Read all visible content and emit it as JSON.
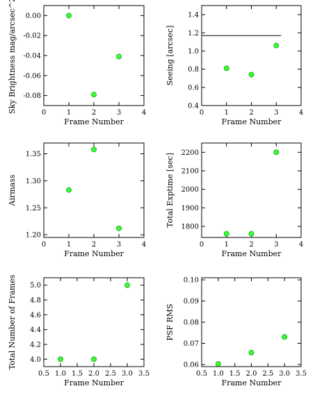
{
  "chart_data": [
    {
      "type": "scatter",
      "xlabel": "Frame Number",
      "ylabel": "Sky Brightness mag/arcsec^2",
      "xlim": [
        0,
        4
      ],
      "ylim": [
        -0.09,
        0.01
      ],
      "xticks": [
        0,
        1,
        2,
        3,
        4
      ],
      "xtick_labels": [
        "0",
        "1",
        "2",
        "3",
        "4"
      ],
      "yticks": [
        -0.08,
        -0.06,
        -0.04,
        -0.02,
        0.0
      ],
      "ytick_labels": [
        "-0.08",
        "-0.06",
        "-0.04",
        "-0.02",
        "0.00"
      ],
      "x": [
        1,
        2,
        3
      ],
      "y": [
        0.0,
        -0.079,
        -0.041
      ],
      "hlines": []
    },
    {
      "type": "scatter",
      "xlabel": "Frame Number",
      "ylabel": "Seeing [arcsec]",
      "xlim": [
        0,
        4
      ],
      "ylim": [
        0.4,
        1.5
      ],
      "xticks": [
        0,
        1,
        2,
        3,
        4
      ],
      "xtick_labels": [
        "0",
        "1",
        "2",
        "3",
        "4"
      ],
      "yticks": [
        0.4,
        0.6,
        0.8,
        1.0,
        1.2,
        1.4
      ],
      "ytick_labels": [
        "0.4",
        "0.6",
        "0.8",
        "1.0",
        "1.2",
        "1.4"
      ],
      "x": [
        1,
        2,
        3
      ],
      "y": [
        0.81,
        0.74,
        1.06
      ],
      "hlines": [
        {
          "y": 1.17,
          "x_from": 0,
          "x_to": 3.2
        }
      ]
    },
    {
      "type": "scatter",
      "xlabel": "Frame Number",
      "ylabel": "Airmass",
      "xlim": [
        0,
        4
      ],
      "ylim": [
        1.195,
        1.37
      ],
      "xticks": [
        0,
        1,
        2,
        3,
        4
      ],
      "xtick_labels": [
        "0",
        "1",
        "2",
        "3",
        "4"
      ],
      "yticks": [
        1.2,
        1.25,
        1.3,
        1.35
      ],
      "ytick_labels": [
        "1.20",
        "1.25",
        "1.30",
        "1.35"
      ],
      "x": [
        1,
        2,
        3
      ],
      "y": [
        1.283,
        1.358,
        1.212
      ],
      "hlines": []
    },
    {
      "type": "scatter",
      "xlabel": "Frame Number",
      "ylabel": "Total Exptime [sec]",
      "xlim": [
        0,
        4
      ],
      "ylim": [
        1740,
        2250
      ],
      "xticks": [
        0,
        1,
        2,
        3,
        4
      ],
      "xtick_labels": [
        "0",
        "1",
        "2",
        "3",
        "4"
      ],
      "yticks": [
        1800,
        1900,
        2000,
        2100,
        2200
      ],
      "ytick_labels": [
        "1800",
        "1900",
        "2000",
        "2100",
        "2200"
      ],
      "x": [
        1,
        2,
        3
      ],
      "y": [
        1760,
        1760,
        2200
      ],
      "hlines": []
    },
    {
      "type": "scatter",
      "xlabel": "Frame Number",
      "ylabel": "Total Number of Frames",
      "xlim": [
        0.5,
        3.5
      ],
      "ylim": [
        3.9,
        5.1
      ],
      "xticks": [
        0.5,
        1.0,
        1.5,
        2.0,
        2.5,
        3.0,
        3.5
      ],
      "xtick_labels": [
        "0.5",
        "1.0",
        "1.5",
        "2.0",
        "2.5",
        "3.0",
        "3.5"
      ],
      "yticks": [
        4.0,
        4.2,
        4.4,
        4.6,
        4.8,
        5.0
      ],
      "ytick_labels": [
        "4.0",
        "4.2",
        "4.4",
        "4.6",
        "4.8",
        "5.0"
      ],
      "x": [
        1,
        2,
        3
      ],
      "y": [
        4.0,
        4.0,
        5.0
      ],
      "hlines": []
    },
    {
      "type": "scatter",
      "xlabel": "Frame Number",
      "ylabel": "PSF RMS",
      "xlim": [
        0.5,
        3.5
      ],
      "ylim": [
        0.059,
        0.101
      ],
      "xticks": [
        0.5,
        1.0,
        1.5,
        2.0,
        2.5,
        3.0,
        3.5
      ],
      "xtick_labels": [
        "0.5",
        "1.0",
        "1.5",
        "2.0",
        "2.5",
        "3.0",
        "3.5"
      ],
      "yticks": [
        0.06,
        0.07,
        0.08,
        0.09,
        0.1
      ],
      "ytick_labels": [
        "0.06",
        "0.07",
        "0.08",
        "0.09",
        "0.10"
      ],
      "x": [
        1,
        2,
        3
      ],
      "y": [
        0.0603,
        0.0656,
        0.073
      ],
      "hlines": []
    }
  ],
  "style": {
    "marker_fill": "#33ff33",
    "marker_stroke": "#1a8f1a",
    "axis_color": "#000000"
  }
}
